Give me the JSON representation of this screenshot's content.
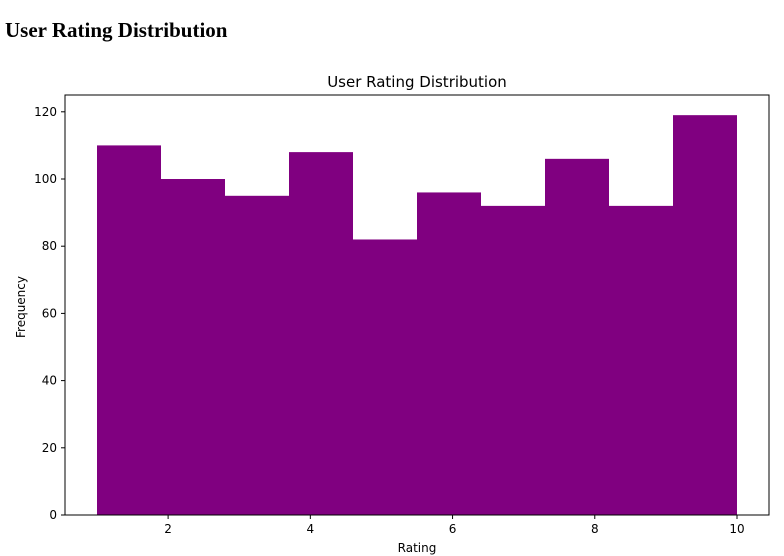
{
  "page": {
    "heading": "User Rating Distribution"
  },
  "chart_data": {
    "type": "bar",
    "title": "User Rating Distribution",
    "xlabel": "Rating",
    "ylabel": "Frequency",
    "xlim": [
      0.55,
      10.45
    ],
    "ylim": [
      0,
      125
    ],
    "xticks": [
      2,
      4,
      6,
      8,
      10
    ],
    "yticks": [
      0,
      20,
      40,
      60,
      80,
      100,
      120
    ],
    "bin_edges": [
      1.0,
      1.9,
      2.8,
      3.7,
      4.6,
      5.5,
      6.4,
      7.3,
      8.2,
      9.1,
      10.0
    ],
    "values": [
      110,
      100,
      95,
      108,
      82,
      96,
      92,
      106,
      92,
      119
    ],
    "bar_color": "#800080",
    "grid": false,
    "legend": false
  }
}
